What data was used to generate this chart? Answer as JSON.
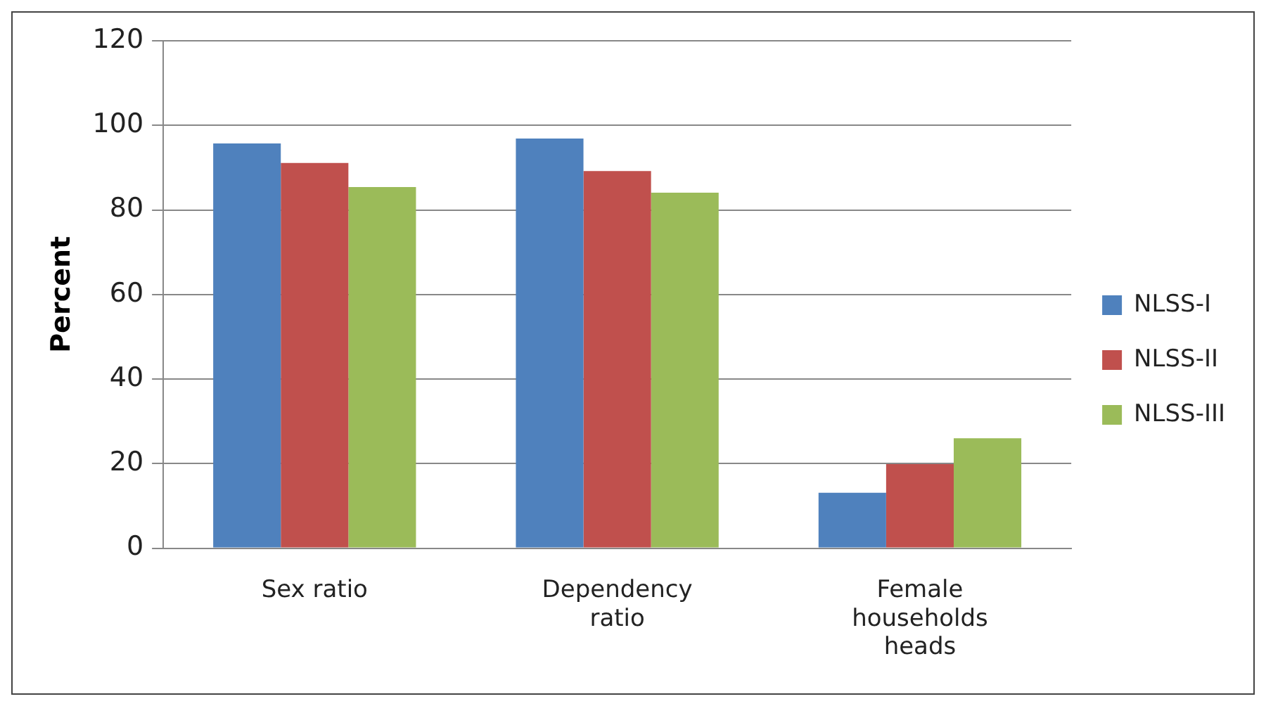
{
  "chart_data": {
    "type": "bar",
    "ylabel": "Percent",
    "categories": [
      "Sex ratio",
      "Dependency ratio",
      "Female households heads"
    ],
    "series": [
      {
        "name": "NLSS-I",
        "color": "#4f81bd",
        "values": [
          95.7,
          96.9,
          13.1
        ]
      },
      {
        "name": "NLSS-II",
        "color": "#c0504d",
        "values": [
          91.1,
          89.2,
          19.9
        ]
      },
      {
        "name": "NLSS-III",
        "color": "#9bbb59",
        "values": [
          85.4,
          84.1,
          26.0
        ]
      }
    ],
    "ylim": [
      0,
      120
    ],
    "yticks": [
      0,
      20,
      40,
      60,
      80,
      100,
      120
    ],
    "grid": "y",
    "legend": "right"
  }
}
